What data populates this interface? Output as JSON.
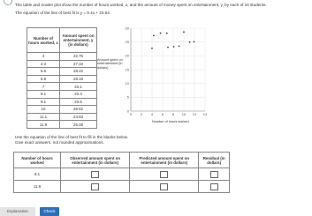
{
  "intro": "The table and scatter plot show the number of hours worked, x, and the amount of money spent on entertainment, y, by each of 10 students.",
  "equation": "The equation of the line of best fit is y = 0.4x + 23.64.",
  "table": {
    "headers": [
      "Number of hours worked, x",
      "Amount spent on entertainment, y (in dollars)"
    ],
    "rows": [
      [
        4.0,
        22.75
      ],
      [
        4.3,
        27.33
      ],
      [
        5.6,
        28.22
      ],
      [
        6.8,
        28.18
      ],
      [
        7.0,
        23.1
      ],
      [
        8.1,
        23.3
      ],
      [
        9.1,
        23.5
      ],
      [
        10.0,
        28.62
      ],
      [
        11.1,
        24.93
      ],
      [
        11.9,
        25.08
      ]
    ]
  },
  "plot": {
    "y_label": "Amount spent on entertainment (in dollars)",
    "x_label": "Number of hours worked",
    "xticks": [
      0,
      2,
      4,
      6,
      8,
      10,
      12,
      14
    ],
    "yticks": [
      0,
      5,
      10,
      15,
      20,
      25,
      30
    ]
  },
  "instructions": [
    "Use the equation of the line of best fit to fill in the blanks below.",
    "Give exact answers, not rounded approximations."
  ],
  "answer_table": {
    "headers": [
      "Number of hours worked",
      "Observed amount spent on entertainment (in dollars)",
      "Predicted amount spent on entertainment (in dollars)",
      "Residual (in dollars)"
    ],
    "rows": [
      [
        "8.1"
      ],
      [
        "11.9"
      ]
    ]
  },
  "buttons": [
    "Explanation",
    "Check"
  ]
}
